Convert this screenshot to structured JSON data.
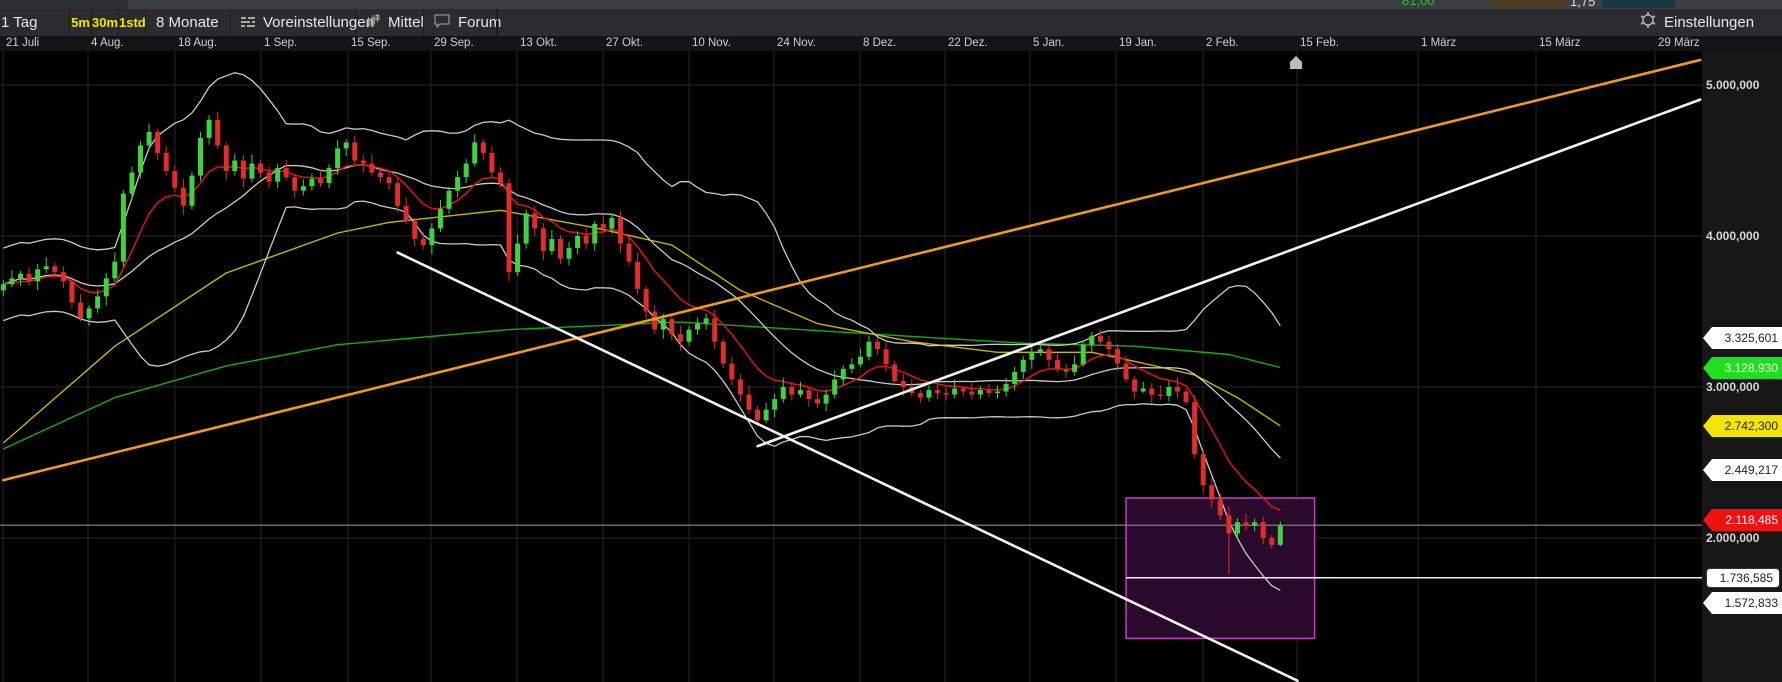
{
  "top_strip": {
    "value_green": "81,00",
    "value_white": "1,75"
  },
  "toolbar": {
    "interval": "1 Tag",
    "intraday": [
      "5m",
      "30m",
      "1std"
    ],
    "range": "8 Monate",
    "presets": "Voreinstellungen",
    "indicators": "Mittel",
    "forum": "Forum",
    "settings": "Einstellungen"
  },
  "colors": {
    "up": "#3fd23f",
    "down": "#e22b2b",
    "bollinger": "#c9c9c9",
    "ma_red": "#e01414",
    "ma_yellow": "#c9b400",
    "ma_green": "#10b010",
    "trend_orange": "#f09a1a",
    "trend_white": "#f2f2f2",
    "zone": "#c93ac9"
  },
  "chart_data": {
    "type": "candlestick",
    "x_ticks": [
      "21 Juli",
      "4 Aug.",
      "18 Aug.",
      "1 Sep.",
      "15 Sep.",
      "29 Sep.",
      "13 Okt.",
      "27 Okt.",
      "10 Nov.",
      "24 Nov.",
      "8 Dez.",
      "22 Dez.",
      "5 Jan.",
      "19 Jan.",
      "2 Feb.",
      "15 Feb.",
      "1 März",
      "15 März",
      "29 März"
    ],
    "y_ticks": [
      {
        "label": "5.000,000",
        "value": 5000
      },
      {
        "label": "4.000,000",
        "value": 4000
      },
      {
        "label": "3.000,000",
        "value": 3000
      },
      {
        "label": "2.000,000",
        "value": 2000
      }
    ],
    "grid": true,
    "candles_ohlc": [
      [
        3640,
        3710,
        3600,
        3680
      ],
      [
        3680,
        3775,
        3660,
        3720
      ],
      [
        3720,
        3770,
        3670,
        3750
      ],
      [
        3750,
        3795,
        3670,
        3700
      ],
      [
        3700,
        3815,
        3640,
        3780
      ],
      [
        3780,
        3860,
        3755,
        3800
      ],
      [
        3800,
        3825,
        3725,
        3760
      ],
      [
        3760,
        3800,
        3655,
        3700
      ],
      [
        3700,
        3730,
        3520,
        3560
      ],
      [
        3560,
        3615,
        3435,
        3455
      ],
      [
        3455,
        3540,
        3405,
        3520
      ],
      [
        3520,
        3645,
        3490,
        3600
      ],
      [
        3600,
        3755,
        3540,
        3720
      ],
      [
        3720,
        3890,
        3695,
        3830
      ],
      [
        3830,
        4305,
        3795,
        4280
      ],
      [
        4280,
        4460,
        4235,
        4420
      ],
      [
        4420,
        4630,
        4380,
        4600
      ],
      [
        4600,
        4745,
        4580,
        4690
      ],
      [
        4690,
        4710,
        4500,
        4550
      ],
      [
        4550,
        4595,
        4400,
        4430
      ],
      [
        4430,
        4465,
        4290,
        4320
      ],
      [
        4320,
        4380,
        4140,
        4200
      ],
      [
        4200,
        4425,
        4175,
        4400
      ],
      [
        4400,
        4690,
        4365,
        4650
      ],
      [
        4650,
        4800,
        4605,
        4770
      ],
      [
        4770,
        4825,
        4575,
        4600
      ],
      [
        4600,
        4620,
        4370,
        4430
      ],
      [
        4430,
        4545,
        4400,
        4500
      ],
      [
        4500,
        4535,
        4320,
        4380
      ],
      [
        4380,
        4540,
        4355,
        4480
      ],
      [
        4480,
        4505,
        4385,
        4420
      ],
      [
        4420,
        4460,
        4315,
        4360
      ],
      [
        4360,
        4480,
        4320,
        4450
      ],
      [
        4450,
        4505,
        4370,
        4390
      ],
      [
        4390,
        4410,
        4250,
        4300
      ],
      [
        4300,
        4375,
        4270,
        4330
      ],
      [
        4330,
        4415,
        4300,
        4380
      ],
      [
        4380,
        4440,
        4325,
        4350
      ],
      [
        4350,
        4475,
        4315,
        4450
      ],
      [
        4450,
        4635,
        4405,
        4580
      ],
      [
        4580,
        4640,
        4530,
        4620
      ],
      [
        4620,
        4665,
        4470,
        4500
      ],
      [
        4500,
        4535,
        4420,
        4480
      ],
      [
        4480,
        4540,
        4395,
        4420
      ],
      [
        4420,
        4445,
        4355,
        4390
      ],
      [
        4390,
        4430,
        4305,
        4350
      ],
      [
        4350,
        4380,
        4160,
        4200
      ],
      [
        4200,
        4255,
        4080,
        4100
      ],
      [
        4100,
        4120,
        3930,
        3980
      ],
      [
        3980,
        4025,
        3910,
        3940
      ],
      [
        3940,
        4085,
        3880,
        4050
      ],
      [
        4050,
        4240,
        4025,
        4180
      ],
      [
        4180,
        4325,
        4145,
        4300
      ],
      [
        4300,
        4430,
        4255,
        4390
      ],
      [
        4390,
        4510,
        4350,
        4480
      ],
      [
        4480,
        4675,
        4460,
        4620
      ],
      [
        4620,
        4640,
        4500,
        4550
      ],
      [
        4550,
        4595,
        4390,
        4420
      ],
      [
        4420,
        4455,
        4320,
        4350
      ],
      [
        4350,
        4380,
        3700,
        3760
      ],
      [
        3760,
        4010,
        3735,
        3950
      ],
      [
        3950,
        4175,
        3915,
        4150
      ],
      [
        4150,
        4195,
        4000,
        4050
      ],
      [
        4050,
        4085,
        3840,
        3900
      ],
      [
        3900,
        4040,
        3875,
        3980
      ],
      [
        3980,
        4005,
        3815,
        3850
      ],
      [
        3850,
        3960,
        3805,
        3920
      ],
      [
        3920,
        4030,
        3880,
        4000
      ],
      [
        4000,
        4055,
        3910,
        3950
      ],
      [
        3950,
        4100,
        3900,
        4080
      ],
      [
        4080,
        4140,
        4020,
        4050
      ],
      [
        4050,
        4145,
        4015,
        4120
      ],
      [
        4120,
        4165,
        3890,
        3950
      ],
      [
        3950,
        3990,
        3805,
        3830
      ],
      [
        3830,
        3890,
        3615,
        3650
      ],
      [
        3650,
        3670,
        3455,
        3500
      ],
      [
        3500,
        3545,
        3350,
        3380
      ],
      [
        3380,
        3485,
        3320,
        3450
      ],
      [
        3450,
        3480,
        3310,
        3350
      ],
      [
        3350,
        3405,
        3240,
        3300
      ],
      [
        3300,
        3405,
        3275,
        3380
      ],
      [
        3380,
        3460,
        3345,
        3420
      ],
      [
        3420,
        3485,
        3380,
        3455
      ],
      [
        3455,
        3510,
        3250,
        3300
      ],
      [
        3300,
        3320,
        3125,
        3155
      ],
      [
        3155,
        3200,
        3015,
        3050
      ],
      [
        3050,
        3085,
        2900,
        2950
      ],
      [
        2950,
        3010,
        2820,
        2850
      ],
      [
        2850,
        2875,
        2740,
        2780
      ],
      [
        2780,
        2895,
        2760,
        2850
      ],
      [
        2850,
        2955,
        2800,
        2920
      ],
      [
        2920,
        3060,
        2895,
        3000
      ],
      [
        3000,
        3040,
        2910,
        2950
      ],
      [
        2950,
        3035,
        2930,
        2980
      ],
      [
        2980,
        3000,
        2870,
        2920
      ],
      [
        2920,
        2965,
        2860,
        2890
      ],
      [
        2890,
        2985,
        2840,
        2950
      ],
      [
        2950,
        3110,
        2925,
        3050
      ],
      [
        3050,
        3145,
        3010,
        3120
      ],
      [
        3120,
        3190,
        3090,
        3150
      ],
      [
        3150,
        3255,
        3130,
        3200
      ],
      [
        3200,
        3340,
        3175,
        3300
      ],
      [
        3300,
        3330,
        3215,
        3250
      ],
      [
        3250,
        3295,
        3100,
        3150
      ],
      [
        3150,
        3175,
        3010,
        3040
      ],
      [
        3040,
        3085,
        2940,
        3000
      ],
      [
        3000,
        3055,
        2935,
        2960
      ],
      [
        2960,
        2980,
        2895,
        2930
      ],
      [
        2930,
        3010,
        2905,
        2980
      ],
      [
        2980,
        3015,
        2920,
        2960
      ],
      [
        2960,
        2995,
        2910,
        2950
      ],
      [
        2950,
        3050,
        2925,
        2990
      ],
      [
        2990,
        3010,
        2935,
        2970
      ],
      [
        2970,
        3025,
        2920,
        2950
      ],
      [
        2950,
        3005,
        2920,
        2980
      ],
      [
        2980,
        3020,
        2935,
        2960
      ],
      [
        2960,
        3010,
        2925,
        2970
      ],
      [
        2970,
        3060,
        2935,
        3020
      ],
      [
        3020,
        3135,
        2980,
        3100
      ],
      [
        3100,
        3205,
        3050,
        3180
      ],
      [
        3180,
        3275,
        3120,
        3230
      ],
      [
        3230,
        3290,
        3205,
        3250
      ],
      [
        3250,
        3275,
        3130,
        3180
      ],
      [
        3180,
        3220,
        3100,
        3120
      ],
      [
        3120,
        3155,
        3060,
        3100
      ],
      [
        3100,
        3210,
        3075,
        3150
      ],
      [
        3150,
        3305,
        3135,
        3280
      ],
      [
        3280,
        3365,
        3230,
        3340
      ],
      [
        3340,
        3380,
        3275,
        3300
      ],
      [
        3300,
        3340,
        3215,
        3250
      ],
      [
        3250,
        3285,
        3110,
        3155
      ],
      [
        3155,
        3210,
        3030,
        3050
      ],
      [
        3050,
        3075,
        2920,
        2970
      ],
      [
        2970,
        3035,
        2960,
        2990
      ],
      [
        2990,
        3025,
        2890,
        2950
      ],
      [
        2950,
        3010,
        2915,
        2940
      ],
      [
        2940,
        3040,
        2905,
        3000
      ],
      [
        3000,
        3060,
        2925,
        2970
      ],
      [
        2970,
        2990,
        2880,
        2900
      ],
      [
        2900,
        2945,
        2530,
        2555
      ],
      [
        2555,
        2575,
        2300,
        2350
      ],
      [
        2350,
        2400,
        2200,
        2255
      ],
      [
        2255,
        2295,
        2120,
        2150
      ],
      [
        2150,
        2210,
        1760,
        2030
      ],
      [
        2030,
        2130,
        1990,
        2105
      ],
      [
        2105,
        2160,
        2050,
        2080
      ],
      [
        2080,
        2130,
        2045,
        2105
      ],
      [
        2105,
        2140,
        1960,
        2000
      ],
      [
        2000,
        2020,
        1930,
        1955
      ],
      [
        1955,
        2110,
        1945,
        2085
      ]
    ],
    "ma_yellow": [
      [
        0,
        2630
      ],
      [
        13,
        3270
      ],
      [
        26,
        3755
      ],
      [
        39,
        4020
      ],
      [
        45,
        4090
      ],
      [
        58,
        4170
      ],
      [
        69,
        4055
      ],
      [
        78,
        3940
      ],
      [
        86,
        3640
      ],
      [
        95,
        3420
      ],
      [
        106,
        3300
      ],
      [
        116,
        3230
      ],
      [
        127,
        3230
      ],
      [
        132,
        3170
      ],
      [
        139,
        3080
      ],
      [
        144,
        2930
      ],
      [
        149,
        2742.3
      ]
    ],
    "ma_green": [
      [
        0,
        2590
      ],
      [
        13,
        2930
      ],
      [
        26,
        3140
      ],
      [
        39,
        3280
      ],
      [
        59,
        3380
      ],
      [
        79,
        3430
      ],
      [
        106,
        3335
      ],
      [
        119,
        3290
      ],
      [
        132,
        3270
      ],
      [
        143,
        3215
      ],
      [
        149,
        3128.93
      ]
    ],
    "trendlines": [
      {
        "color": "#f09a1a",
        "from": [
          0,
          2383
        ],
        "to": [
          198,
          5166
        ]
      },
      {
        "color": "#f2f2f2",
        "from": [
          88,
          2608
        ],
        "to": [
          198,
          4903
        ]
      },
      {
        "color": "#f2f2f2",
        "from": [
          46,
          3890
        ],
        "to": [
          151,
          1055
        ]
      }
    ],
    "zone": {
      "from_index": 131,
      "to_index": 153,
      "top": 2265,
      "bottom": 1335
    },
    "support_line": {
      "value": 1736.585,
      "from_index": 131
    },
    "price_line": {
      "value": 2085
    },
    "price_labels": [
      {
        "label": "3.325,601",
        "bg": "#ffffff",
        "fg": "#222222"
      },
      {
        "label": "3.128,930",
        "bg": "#1fe01f",
        "fg": "#ffffff"
      },
      {
        "label": "2.742,300",
        "bg": "#f4e400",
        "fg": "#222222"
      },
      {
        "label": "2.449,217",
        "bg": "#ffffff",
        "fg": "#222222"
      },
      {
        "label": "2.118,485",
        "bg": "#f01212",
        "fg": "#ffffff"
      },
      {
        "label": "1.736,585",
        "bg": "#ffffff",
        "fg": "#222222",
        "style": "box"
      },
      {
        "label": "1.572,833",
        "bg": "#ffffff",
        "fg": "#222222"
      }
    ]
  }
}
